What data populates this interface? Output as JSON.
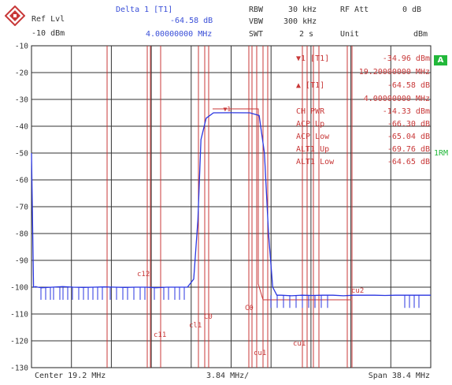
{
  "header": {
    "ref_lvl_label": "Ref Lvl",
    "ref_lvl_value": "-10 dBm",
    "marker_title": "Delta 1 [T1]",
    "marker_level": "-64.58 dB",
    "marker_freq": "4.00000000 MHz",
    "rbw_label": "RBW",
    "rbw_value": "30 kHz",
    "vbw_label": "VBW",
    "vbw_value": "300 kHz",
    "swt_label": "SWT",
    "swt_value": "2 s",
    "rf_att_label": "RF Att",
    "rf_att_value": "0 dB",
    "unit_label": "Unit",
    "unit_value": "dBm"
  },
  "results": [
    {
      "label": "▼1 [T1]",
      "value": "-34.96 dBm"
    },
    {
      "label": "",
      "value": "19.20000000 MHz"
    },
    {
      "label": "▲ [T1]",
      "value": "-64.58 dB"
    },
    {
      "label": "",
      "value": "4.00000000 MHz"
    },
    {
      "label": "CH PWR",
      "value": "-14.33 dBm"
    },
    {
      "label": "ACP Up",
      "value": "-66.30 dB"
    },
    {
      "label": "ACP Low",
      "value": "-65.04 dB"
    },
    {
      "label": "ALT1 Up",
      "value": "-69.76 dB"
    },
    {
      "label": "ALT1 Low",
      "value": "-64.65 dB"
    }
  ],
  "footer": {
    "center": "Center 19.2 MHz",
    "per_div": "3.84 MHz/",
    "span": "Span 38.4 MHz"
  },
  "side": {
    "trace_a": "A",
    "rm": "1RM"
  },
  "channel_labels": [
    "c12",
    "c11",
    "cl1",
    "C0",
    "C0",
    "cu1",
    "cu1",
    "cu2"
  ],
  "colors": {
    "trace": "#2a36e0",
    "limit_lines": "#c83838",
    "grid": "#222222",
    "accent": "#22b83a"
  },
  "chart_data": {
    "type": "line",
    "title": "",
    "xlabel": "",
    "ylabel": "",
    "ylim": [
      -130,
      -10
    ],
    "y_ticks": [
      -10,
      -20,
      -30,
      -40,
      -50,
      -60,
      -70,
      -80,
      -90,
      -100,
      -110,
      -120,
      -130
    ],
    "xlim_mhz": [
      0,
      38.4
    ],
    "series": [
      {
        "x_mhz": [
          0,
          0.2,
          0.4,
          0.6,
          1,
          2,
          3,
          4,
          5,
          6,
          7,
          8,
          9,
          10,
          11,
          12,
          13,
          14,
          15,
          15.6,
          16.0,
          16.3,
          16.8,
          17.5,
          19.2,
          21,
          21.9,
          22.4,
          22.8,
          23.2,
          23.6,
          24,
          25,
          26,
          27,
          28,
          29,
          30,
          31,
          32,
          33,
          34,
          35,
          36,
          37,
          38.4
        ],
        "y_dbm": [
          -50,
          -100,
          -99.8,
          -100,
          -100.2,
          -100,
          -99.8,
          -100,
          -100.1,
          -100,
          -99.9,
          -100,
          -100.1,
          -100,
          -100,
          -100.2,
          -100,
          -100,
          -100,
          -97,
          -75,
          -45,
          -37,
          -35,
          -34.96,
          -35,
          -36,
          -50,
          -80,
          -100,
          -103,
          -103,
          -103.2,
          -103,
          -103.1,
          -103,
          -103,
          -103.2,
          -103,
          -103,
          -103,
          -103.1,
          -103,
          -103,
          -103,
          -103
        ]
      }
    ]
  }
}
